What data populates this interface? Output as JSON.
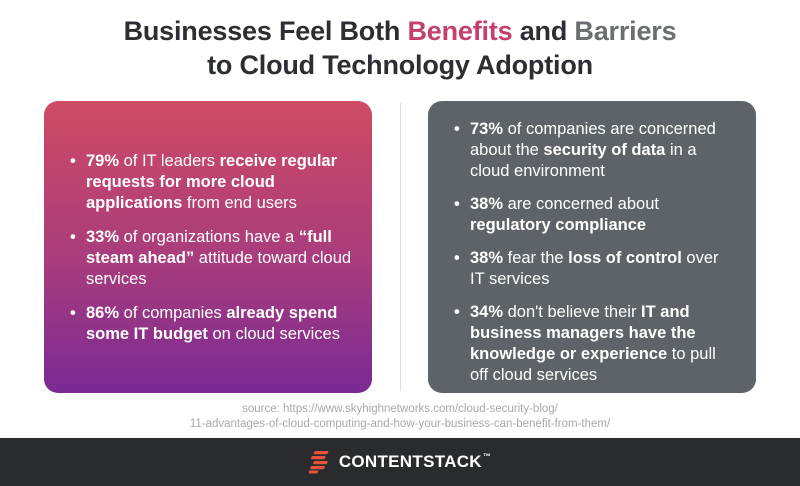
{
  "title": {
    "line1_pre": "Businesses Feel Both ",
    "line1_benefits": "Benefits",
    "line1_mid": " and ",
    "line1_barriers": "Barriers",
    "line2": "to Cloud Technology Adoption"
  },
  "benefits": [
    {
      "parts": [
        {
          "text": "79%",
          "bold": true
        },
        {
          "text": " of IT leaders ",
          "bold": false
        },
        {
          "text": "receive regular requests for more cloud applications",
          "bold": true
        },
        {
          "text": " from end users",
          "bold": false
        }
      ]
    },
    {
      "parts": [
        {
          "text": "33%",
          "bold": true
        },
        {
          "text": " of organizations have a ",
          "bold": false
        },
        {
          "text": "“full steam ahead”",
          "bold": true
        },
        {
          "text": " attitude toward cloud services",
          "bold": false
        }
      ]
    },
    {
      "parts": [
        {
          "text": "86%",
          "bold": true
        },
        {
          "text": " of companies ",
          "bold": false
        },
        {
          "text": "already spend some IT budget",
          "bold": true
        },
        {
          "text": " on cloud services",
          "bold": false
        }
      ]
    }
  ],
  "barriers": [
    {
      "parts": [
        {
          "text": "73%",
          "bold": true
        },
        {
          "text": " of companies are concerned about the ",
          "bold": false
        },
        {
          "text": "security of data",
          "bold": true
        },
        {
          "text": " in a cloud environment",
          "bold": false
        }
      ]
    },
    {
      "parts": [
        {
          "text": "38%",
          "bold": true
        },
        {
          "text": " are concerned about ",
          "bold": false
        },
        {
          "text": "regulatory compliance",
          "bold": true
        }
      ]
    },
    {
      "parts": [
        {
          "text": "38%",
          "bold": true
        },
        {
          "text": " fear the ",
          "bold": false
        },
        {
          "text": "loss of control",
          "bold": true
        },
        {
          "text": " over IT services",
          "bold": false
        }
      ]
    },
    {
      "parts": [
        {
          "text": "34%",
          "bold": true
        },
        {
          "text": " don't believe their ",
          "bold": false
        },
        {
          "text": "IT and business managers have the knowledge or experience",
          "bold": true
        },
        {
          "text": " to pull off cloud services",
          "bold": false
        }
      ]
    }
  ],
  "source": {
    "line1": "source: https://www.skyhighnetworks.com/cloud-security-blog/",
    "line2": "11-advantages-of-cloud-computing-and-how-your-business-can-benefit-from-them/"
  },
  "footer": {
    "brand": "CONTENTSTACK",
    "trademark": "™",
    "logo_icon": "contentstack-logo-icon",
    "logo_color": "#e9533b"
  },
  "colors": {
    "benefits_accent": "#c5406a",
    "barriers_accent": "#6b6e72",
    "left_panel_top": "#cf4b64",
    "left_panel_bottom": "#7a2a95",
    "right_panel": "#5e6369",
    "footer_bg": "#2a2b2f"
  }
}
